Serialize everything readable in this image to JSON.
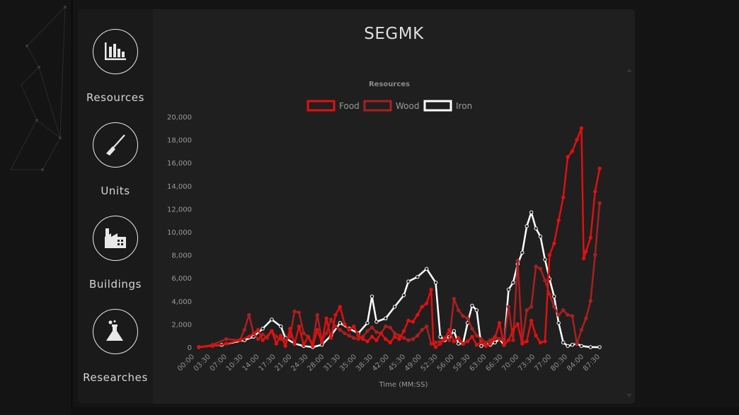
{
  "page": {
    "title": "SEGMK"
  },
  "sidebar": {
    "items": [
      {
        "label": "Resources",
        "icon": "bar-chart-icon"
      },
      {
        "label": "Units",
        "icon": "musket-icon"
      },
      {
        "label": "Buildings",
        "icon": "factory-icon"
      },
      {
        "label": "Researches",
        "icon": "flask-icon"
      }
    ]
  },
  "colors": {
    "food": "#e01010",
    "wood": "#a82020",
    "iron": "#ffffff"
  },
  "chart_data": {
    "type": "line",
    "title": "Resources",
    "xlabel": "Time (MM:SS)",
    "ylabel": "",
    "ylim": [
      0,
      20000
    ],
    "yticks": [
      "0",
      "2,000",
      "4,000",
      "6,000",
      "8,000",
      "10,000",
      "12,000",
      "14,000",
      "16,000",
      "18,000",
      "20,000"
    ],
    "x_tick_labels": [
      "00:00",
      "03:30",
      "07:00",
      "10:30",
      "14:00",
      "17:30",
      "21:00",
      "24:30",
      "28:00",
      "31:30",
      "35:00",
      "38:30",
      "42:00",
      "45:30",
      "49:00",
      "52:30",
      "56:00",
      "59:30",
      "63:00",
      "66:30",
      "70:00",
      "73:30",
      "77:00",
      "80:30",
      "84:00",
      "87:30"
    ],
    "x_minutes": [
      0,
      90
    ],
    "legend_position": "top",
    "series": [
      {
        "name": "Food",
        "points": [
          [
            0,
            0
          ],
          [
            3,
            100
          ],
          [
            6,
            300
          ],
          [
            9,
            600
          ],
          [
            11,
            900
          ],
          [
            13,
            1500
          ],
          [
            14,
            600
          ],
          [
            16,
            1400
          ],
          [
            17,
            300
          ],
          [
            18,
            1000
          ],
          [
            19,
            100
          ],
          [
            20,
            1600
          ],
          [
            21,
            300
          ],
          [
            22,
            1800
          ],
          [
            23,
            200
          ],
          [
            24,
            900
          ],
          [
            25,
            100
          ],
          [
            26,
            1500
          ],
          [
            27,
            400
          ],
          [
            28,
            2500
          ],
          [
            29,
            800
          ],
          [
            30,
            2800
          ],
          [
            31,
            3500
          ],
          [
            32,
            2000
          ],
          [
            33,
            1500
          ],
          [
            34,
            1800
          ],
          [
            35,
            1000
          ],
          [
            36,
            700
          ],
          [
            37,
            500
          ],
          [
            38,
            900
          ],
          [
            39,
            600
          ],
          [
            40,
            1200
          ],
          [
            41,
            700
          ],
          [
            42,
            400
          ],
          [
            43,
            900
          ],
          [
            44,
            700
          ],
          [
            45,
            1400
          ],
          [
            46,
            2300
          ],
          [
            47,
            2200
          ],
          [
            48,
            2800
          ],
          [
            49,
            3500
          ],
          [
            50,
            3800
          ],
          [
            51,
            5000
          ],
          [
            51.5,
            300
          ],
          [
            52,
            0
          ],
          [
            53,
            300
          ],
          [
            54,
            700
          ],
          [
            55,
            1500
          ],
          [
            56,
            500
          ],
          [
            57,
            800
          ],
          [
            58,
            300
          ],
          [
            59,
            500
          ],
          [
            60,
            900
          ],
          [
            61,
            200
          ],
          [
            62,
            400
          ],
          [
            63,
            100
          ],
          [
            64,
            300
          ],
          [
            65,
            800
          ],
          [
            66,
            2100
          ],
          [
            67,
            200
          ],
          [
            68,
            600
          ],
          [
            69,
            1500
          ],
          [
            70,
            2000
          ],
          [
            71,
            300
          ],
          [
            72,
            500
          ],
          [
            73,
            2300
          ],
          [
            74,
            1000
          ],
          [
            75,
            400
          ],
          [
            76,
            500
          ],
          [
            77,
            8000
          ],
          [
            78,
            9000
          ],
          [
            79,
            11000
          ],
          [
            80,
            13000
          ],
          [
            81,
            16500
          ],
          [
            82,
            17000
          ],
          [
            83,
            18000
          ],
          [
            84,
            19000
          ],
          [
            84.5,
            7700
          ],
          [
            85,
            8300
          ],
          [
            86,
            9500
          ],
          [
            87,
            13500
          ],
          [
            88,
            15500
          ]
        ]
      },
      {
        "name": "Wood",
        "points": [
          [
            0,
            0
          ],
          [
            3,
            200
          ],
          [
            6,
            700
          ],
          [
            9,
            600
          ],
          [
            10,
            1500
          ],
          [
            11,
            2800
          ],
          [
            12,
            1200
          ],
          [
            13,
            700
          ],
          [
            14,
            1100
          ],
          [
            15,
            800
          ],
          [
            16,
            1400
          ],
          [
            17,
            900
          ],
          [
            18,
            700
          ],
          [
            19,
            600
          ],
          [
            20,
            900
          ],
          [
            21,
            3100
          ],
          [
            22,
            3000
          ],
          [
            23,
            1200
          ],
          [
            24,
            900
          ],
          [
            25,
            300
          ],
          [
            26,
            2800
          ],
          [
            27,
            600
          ],
          [
            28,
            1200
          ],
          [
            29,
            2400
          ],
          [
            30,
            1800
          ],
          [
            31,
            1500
          ],
          [
            32,
            1200
          ],
          [
            33,
            1000
          ],
          [
            34,
            800
          ],
          [
            35,
            700
          ],
          [
            36,
            900
          ],
          [
            37,
            1400
          ],
          [
            38,
            1700
          ],
          [
            39,
            1300
          ],
          [
            40,
            1200
          ],
          [
            41,
            1800
          ],
          [
            42,
            1700
          ],
          [
            43,
            1200
          ],
          [
            44,
            1000
          ],
          [
            45,
            800
          ],
          [
            46,
            600
          ],
          [
            47,
            700
          ],
          [
            48,
            1000
          ],
          [
            49,
            1500
          ],
          [
            50,
            1800
          ],
          [
            51,
            300
          ],
          [
            52,
            400
          ],
          [
            53,
            500
          ],
          [
            54,
            800
          ],
          [
            55,
            600
          ],
          [
            56,
            4200
          ],
          [
            57,
            3200
          ],
          [
            58,
            2700
          ],
          [
            59,
            2500
          ],
          [
            60,
            1600
          ],
          [
            61,
            1000
          ],
          [
            62,
            700
          ],
          [
            63,
            400
          ],
          [
            64,
            600
          ],
          [
            65,
            900
          ],
          [
            66,
            700
          ],
          [
            67,
            500
          ],
          [
            68,
            3500
          ],
          [
            69,
            600
          ],
          [
            70,
            7500
          ],
          [
            71,
            500
          ],
          [
            72,
            3200
          ],
          [
            73,
            3500
          ],
          [
            74,
            7000
          ],
          [
            75,
            6800
          ],
          [
            76,
            5800
          ],
          [
            77,
            4600
          ],
          [
            78,
            3500
          ],
          [
            79,
            2800
          ],
          [
            80,
            3200
          ],
          [
            81,
            2800
          ],
          [
            82,
            2700
          ],
          [
            83,
            300
          ],
          [
            84,
            1500
          ],
          [
            85,
            2500
          ],
          [
            86,
            4000
          ],
          [
            87,
            8000
          ],
          [
            88,
            12500
          ]
        ]
      },
      {
        "name": "Iron",
        "points": [
          [
            0,
            0
          ],
          [
            5,
            200
          ],
          [
            10,
            600
          ],
          [
            12,
            900
          ],
          [
            14,
            1600
          ],
          [
            16,
            2400
          ],
          [
            18,
            1800
          ],
          [
            19,
            800
          ],
          [
            21,
            300
          ],
          [
            23,
            100
          ],
          [
            25,
            0
          ],
          [
            27,
            200
          ],
          [
            29,
            1000
          ],
          [
            31,
            2100
          ],
          [
            33,
            1600
          ],
          [
            35,
            1200
          ],
          [
            37,
            2100
          ],
          [
            38,
            4400
          ],
          [
            39,
            2200
          ],
          [
            41,
            2500
          ],
          [
            43,
            3500
          ],
          [
            45,
            4500
          ],
          [
            46,
            5700
          ],
          [
            48,
            6100
          ],
          [
            50,
            6800
          ],
          [
            52,
            5600
          ],
          [
            53,
            900
          ],
          [
            54,
            600
          ],
          [
            55,
            900
          ],
          [
            56,
            1400
          ],
          [
            57,
            300
          ],
          [
            58,
            300
          ],
          [
            59,
            2100
          ],
          [
            60,
            3600
          ],
          [
            61,
            3200
          ],
          [
            62,
            100
          ],
          [
            63,
            300
          ],
          [
            64,
            200
          ],
          [
            65,
            400
          ],
          [
            66,
            700
          ],
          [
            67,
            200
          ],
          [
            68,
            5000
          ],
          [
            69,
            5600
          ],
          [
            70,
            7200
          ],
          [
            71,
            8200
          ],
          [
            72,
            10500
          ],
          [
            73,
            11700
          ],
          [
            74,
            10300
          ],
          [
            75,
            9600
          ],
          [
            76,
            7600
          ],
          [
            77,
            5900
          ],
          [
            78,
            4400
          ],
          [
            79,
            2100
          ],
          [
            80,
            400
          ],
          [
            81,
            100
          ],
          [
            82,
            200
          ],
          [
            83,
            300
          ],
          [
            84,
            100
          ],
          [
            86,
            0
          ],
          [
            88,
            0
          ]
        ]
      }
    ]
  }
}
